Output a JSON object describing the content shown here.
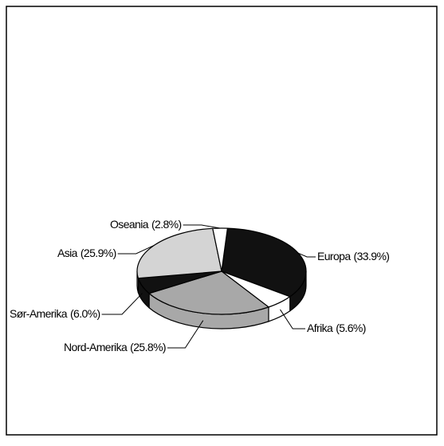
{
  "chart_data": {
    "type": "pie3d",
    "categories": [
      "Europa",
      "Afrika",
      "Nord-Amerika",
      "Sør-Amerika",
      "Asia",
      "Oseania"
    ],
    "values": [
      33.9,
      5.6,
      25.8,
      6.0,
      25.9,
      2.8
    ],
    "value_labels": [
      "(33.9%)",
      "(5.6%)",
      "(25.8%)",
      "(6.0%)",
      "(25.9%)",
      "(2.8%)"
    ],
    "colors": [
      "#111111",
      "#ffffff",
      "#a8a8a8",
      "#111111",
      "#d4d4d4",
      "#ffffff"
    ]
  }
}
